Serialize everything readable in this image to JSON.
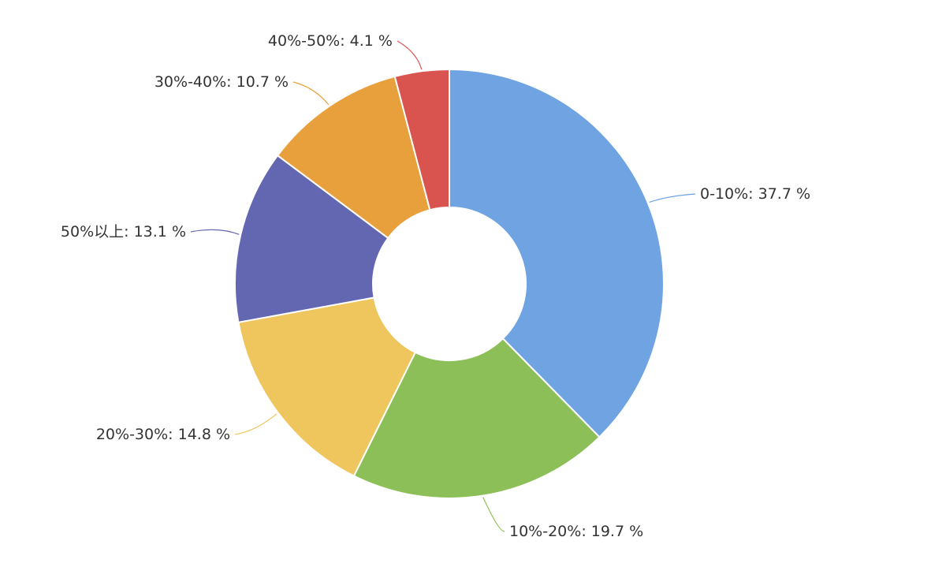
{
  "chart_data": {
    "type": "pie",
    "variant": "donut",
    "title": "",
    "legend": "none",
    "start": "top, clockwise",
    "slices": [
      {
        "label": "0-10%",
        "value": 37.7,
        "display": "0-10%: 37.7 %",
        "color": "#6fa3e1"
      },
      {
        "label": "10%-20%",
        "value": 19.7,
        "display": "10%-20%: 19.7 %",
        "color": "#8dbf58"
      },
      {
        "label": "20%-30%",
        "value": 14.8,
        "display": "20%-30%: 14.8 %",
        "color": "#efc65d"
      },
      {
        "label": "50%以上",
        "value": 13.1,
        "display": "50%以上: 13.1 %",
        "color": "#6366b0"
      },
      {
        "label": "30%-40%",
        "value": 10.7,
        "display": "30%-40%: 10.7 %",
        "color": "#e8a03c"
      },
      {
        "label": "40%-50%",
        "value": 4.1,
        "display": "40%-50%: 4.1 %",
        "color": "#d9534f"
      }
    ]
  }
}
